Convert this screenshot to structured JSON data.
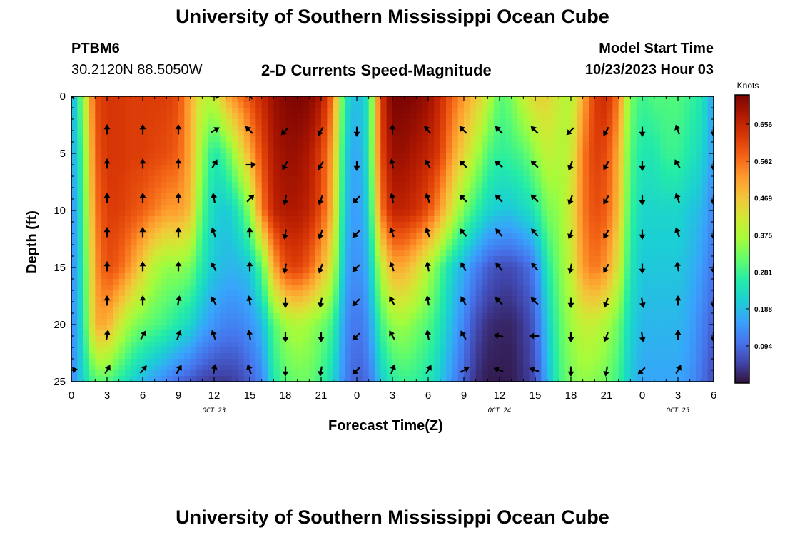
{
  "header": {
    "title": "University of Southern Mississippi Ocean Cube",
    "station": "PTBM6",
    "coords": "30.2120N  88.5050W",
    "subtitle": "2-D Currents Speed-Magnitude",
    "model_label": "Model Start Time",
    "model_time": "10/23/2023 Hour 03"
  },
  "footer": {
    "title": "University of Southern Mississippi Ocean Cube"
  },
  "chart_data": {
    "type": "heatmap",
    "title": "2-D Currents Speed-Magnitude",
    "xlabel": "Forecast Time(Z)",
    "ylabel": "Depth (ft)",
    "x_tick_labels": [
      "0",
      "3",
      "6",
      "9",
      "12",
      "15",
      "18",
      "21",
      "0",
      "3",
      "6",
      "9",
      "12",
      "15",
      "18",
      "21",
      "0",
      "3",
      "6"
    ],
    "x_hours_from_start": [
      0,
      3,
      6,
      9,
      12,
      15,
      18,
      21,
      24,
      27,
      30,
      33,
      36,
      39,
      42,
      45,
      48,
      51,
      54
    ],
    "date_labels": [
      {
        "label": "OCT 23",
        "hour": 12
      },
      {
        "label": "OCT 24",
        "hour": 36
      },
      {
        "label": "OCT 25",
        "hour": 51
      }
    ],
    "y_ticks": [
      0,
      5,
      10,
      15,
      20,
      25
    ],
    "xlim": [
      0,
      54
    ],
    "ylim": [
      0,
      25
    ],
    "colorbar": {
      "units": "Knots",
      "tick_labels": [
        "0.656",
        "0.562",
        "0.469",
        "0.375",
        "0.281",
        "0.188",
        "0.094"
      ],
      "tick_values": [
        0.656,
        0.562,
        0.469,
        0.375,
        0.281,
        0.188,
        0.094
      ],
      "range": [
        0,
        0.73
      ],
      "colormap": [
        "#30123b",
        "#4145ab",
        "#4675ed",
        "#39a2fc",
        "#1bcfd4",
        "#24eca6",
        "#61fc6c",
        "#a4fc3b",
        "#d1e834",
        "#f3c63a",
        "#fe9b2d",
        "#f36315",
        "#d93806",
        "#b11901",
        "#7a0402"
      ]
    },
    "speed_samples": {
      "hours": [
        0,
        1,
        2,
        3,
        4,
        5,
        6,
        7,
        8,
        9,
        10,
        11,
        12,
        13,
        14,
        15,
        16,
        17,
        18,
        19,
        20,
        21,
        22,
        23,
        24,
        25,
        26,
        27,
        28,
        29,
        30,
        31,
        32,
        33,
        34,
        35,
        36,
        37,
        38,
        39,
        40,
        41,
        42,
        43,
        44,
        45,
        46,
        47,
        48,
        49,
        50,
        51,
        52,
        53,
        54
      ],
      "depths": [
        0,
        5,
        10,
        15,
        20,
        25
      ],
      "values": [
        [
          0.15,
          0.35,
          0.6,
          0.63,
          0.63,
          0.62,
          0.62,
          0.62,
          0.62,
          0.6,
          0.5,
          0.4,
          0.4,
          0.5,
          0.55,
          0.6,
          0.65,
          0.7,
          0.72,
          0.73,
          0.72,
          0.68,
          0.55,
          0.25,
          0.18,
          0.25,
          0.62,
          0.73,
          0.73,
          0.72,
          0.7,
          0.65,
          0.58,
          0.52,
          0.47,
          0.4,
          0.3,
          0.33,
          0.4,
          0.45,
          0.45,
          0.4,
          0.38,
          0.5,
          0.62,
          0.65,
          0.55,
          0.33,
          0.28,
          0.3,
          0.3,
          0.3,
          0.28,
          0.25,
          0.15
        ],
        [
          0.15,
          0.3,
          0.58,
          0.63,
          0.63,
          0.62,
          0.62,
          0.61,
          0.6,
          0.58,
          0.5,
          0.35,
          0.25,
          0.3,
          0.4,
          0.5,
          0.6,
          0.68,
          0.7,
          0.7,
          0.68,
          0.62,
          0.5,
          0.22,
          0.15,
          0.25,
          0.6,
          0.7,
          0.7,
          0.68,
          0.66,
          0.62,
          0.52,
          0.45,
          0.38,
          0.3,
          0.27,
          0.28,
          0.3,
          0.35,
          0.4,
          0.38,
          0.4,
          0.55,
          0.62,
          0.6,
          0.5,
          0.3,
          0.25,
          0.25,
          0.28,
          0.28,
          0.25,
          0.22,
          0.15
        ],
        [
          0.12,
          0.28,
          0.55,
          0.62,
          0.62,
          0.6,
          0.58,
          0.55,
          0.52,
          0.52,
          0.48,
          0.3,
          0.22,
          0.2,
          0.25,
          0.35,
          0.55,
          0.66,
          0.68,
          0.68,
          0.66,
          0.6,
          0.48,
          0.2,
          0.14,
          0.22,
          0.55,
          0.66,
          0.66,
          0.64,
          0.6,
          0.52,
          0.42,
          0.33,
          0.27,
          0.22,
          0.2,
          0.2,
          0.22,
          0.25,
          0.33,
          0.35,
          0.42,
          0.55,
          0.6,
          0.58,
          0.48,
          0.28,
          0.22,
          0.22,
          0.22,
          0.22,
          0.2,
          0.18,
          0.12
        ],
        [
          0.12,
          0.26,
          0.52,
          0.6,
          0.58,
          0.52,
          0.45,
          0.38,
          0.35,
          0.35,
          0.33,
          0.25,
          0.2,
          0.18,
          0.18,
          0.2,
          0.3,
          0.5,
          0.6,
          0.62,
          0.58,
          0.5,
          0.4,
          0.17,
          0.13,
          0.18,
          0.38,
          0.5,
          0.5,
          0.45,
          0.38,
          0.3,
          0.22,
          0.17,
          0.12,
          0.08,
          0.06,
          0.06,
          0.08,
          0.12,
          0.25,
          0.33,
          0.4,
          0.52,
          0.56,
          0.52,
          0.42,
          0.25,
          0.2,
          0.2,
          0.2,
          0.2,
          0.18,
          0.15,
          0.1
        ],
        [
          0.12,
          0.24,
          0.5,
          0.5,
          0.42,
          0.35,
          0.32,
          0.3,
          0.28,
          0.25,
          0.22,
          0.17,
          0.14,
          0.12,
          0.12,
          0.14,
          0.18,
          0.3,
          0.36,
          0.38,
          0.36,
          0.33,
          0.28,
          0.14,
          0.1,
          0.14,
          0.28,
          0.35,
          0.36,
          0.33,
          0.3,
          0.25,
          0.18,
          0.12,
          0.06,
          0.03,
          0.02,
          0.02,
          0.04,
          0.08,
          0.2,
          0.3,
          0.36,
          0.4,
          0.4,
          0.37,
          0.32,
          0.22,
          0.18,
          0.18,
          0.18,
          0.18,
          0.16,
          0.12,
          0.08
        ],
        [
          0.12,
          0.22,
          0.3,
          0.3,
          0.26,
          0.22,
          0.18,
          0.15,
          0.12,
          0.09,
          0.07,
          0.05,
          0.04,
          0.04,
          0.05,
          0.08,
          0.12,
          0.25,
          0.3,
          0.32,
          0.32,
          0.28,
          0.22,
          0.12,
          0.08,
          0.1,
          0.2,
          0.26,
          0.28,
          0.27,
          0.25,
          0.2,
          0.14,
          0.08,
          0.03,
          0.01,
          0.01,
          0.01,
          0.03,
          0.06,
          0.17,
          0.28,
          0.33,
          0.35,
          0.34,
          0.32,
          0.28,
          0.2,
          0.16,
          0.16,
          0.16,
          0.16,
          0.14,
          0.1,
          0.06
        ]
      ]
    },
    "vector_depths": [
      0,
      3,
      6,
      9,
      12,
      15,
      18,
      21,
      24
    ],
    "vector_times": [
      0,
      3,
      6,
      9,
      12,
      15,
      18,
      21,
      24,
      27,
      30,
      33,
      36,
      39,
      42,
      45,
      48,
      51,
      54
    ],
    "vector_directions_deg": [
      [
        -45,
        null,
        null,
        null,
        90,
        -45,
        null,
        null,
        null,
        null,
        null,
        null,
        null,
        null,
        null,
        null,
        null,
        null,
        null
      ],
      [
        null,
        0,
        0,
        0,
        60,
        -45,
        -135,
        -150,
        180,
        0,
        -40,
        -45,
        -45,
        -45,
        -135,
        -150,
        180,
        -20,
        180
      ],
      [
        null,
        0,
        0,
        0,
        30,
        90,
        -150,
        -150,
        180,
        -10,
        -30,
        -45,
        -50,
        -45,
        -160,
        -150,
        180,
        -30,
        180
      ],
      [
        null,
        0,
        0,
        0,
        -10,
        45,
        -170,
        -160,
        -135,
        -10,
        -20,
        -45,
        -45,
        -45,
        -160,
        -150,
        180,
        -20,
        180
      ],
      [
        null,
        0,
        0,
        0,
        -20,
        0,
        -170,
        -160,
        -135,
        -20,
        -20,
        -40,
        -40,
        -40,
        -160,
        -150,
        180,
        -20,
        180
      ],
      [
        null,
        0,
        0,
        0,
        -30,
        0,
        -170,
        -160,
        -135,
        -20,
        -10,
        -30,
        -40,
        -40,
        -170,
        -150,
        180,
        -10,
        180
      ],
      [
        null,
        0,
        0,
        10,
        -30,
        -10,
        -180,
        -170,
        -135,
        -30,
        -10,
        -30,
        -45,
        -45,
        -180,
        -160,
        170,
        0,
        180
      ],
      [
        null,
        10,
        30,
        20,
        -20,
        -10,
        -180,
        -180,
        -135,
        -30,
        -10,
        -30,
        -80,
        -90,
        -180,
        -160,
        170,
        0,
        180
      ],
      [
        80,
        30,
        40,
        30,
        10,
        -20,
        -180,
        -170,
        -135,
        20,
        30,
        60,
        -70,
        -70,
        -180,
        -170,
        -135,
        30,
        null
      ]
    ]
  }
}
